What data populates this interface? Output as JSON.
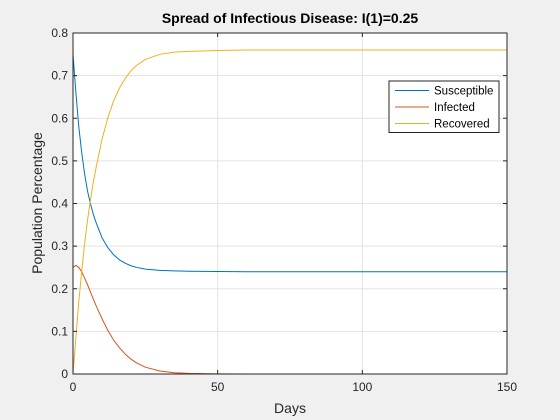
{
  "chart_data": {
    "type": "line",
    "title": "Spread of Infectious Disease: I(1)=0.25",
    "xlabel": "Days",
    "ylabel": "Population Percentage",
    "xlim": [
      0,
      150
    ],
    "ylim": [
      0,
      0.8
    ],
    "xticks": [
      0,
      50,
      100,
      150
    ],
    "yticks": [
      0,
      0.1,
      0.2,
      0.3,
      0.4,
      0.5,
      0.6,
      0.7,
      0.8
    ],
    "grid": true,
    "legend_position": "top-right",
    "series": [
      {
        "name": "Susceptible",
        "color": "#0072bd",
        "x": [
          0,
          1,
          2,
          3,
          4,
          5,
          6,
          7,
          8,
          10,
          12,
          14,
          16,
          18,
          20,
          22,
          25,
          30,
          35,
          40,
          50,
          60,
          80,
          100,
          120,
          150
        ],
        "y": [
          0.75,
          0.66,
          0.58,
          0.52,
          0.47,
          0.43,
          0.4,
          0.375,
          0.355,
          0.32,
          0.297,
          0.28,
          0.268,
          0.26,
          0.254,
          0.25,
          0.246,
          0.243,
          0.242,
          0.241,
          0.2405,
          0.24,
          0.24,
          0.24,
          0.24,
          0.24
        ]
      },
      {
        "name": "Infected",
        "color": "#d95319",
        "x": [
          0,
          1,
          2,
          3,
          4,
          5,
          6,
          7,
          8,
          10,
          12,
          14,
          16,
          18,
          20,
          22,
          25,
          30,
          35,
          40,
          50,
          60,
          80,
          100,
          120,
          150
        ],
        "y": [
          0.25,
          0.255,
          0.25,
          0.24,
          0.225,
          0.21,
          0.193,
          0.176,
          0.16,
          0.13,
          0.103,
          0.08,
          0.062,
          0.047,
          0.035,
          0.026,
          0.016,
          0.007,
          0.003,
          0.0015,
          0.0003,
          0.0001,
          0,
          0,
          0,
          0
        ]
      },
      {
        "name": "Recovered",
        "color": "#edb120",
        "x": [
          0,
          1,
          2,
          3,
          4,
          5,
          6,
          7,
          8,
          10,
          12,
          14,
          16,
          18,
          20,
          22,
          25,
          30,
          35,
          40,
          50,
          60,
          80,
          100,
          120,
          150
        ],
        "y": [
          0.0,
          0.085,
          0.17,
          0.24,
          0.305,
          0.36,
          0.407,
          0.449,
          0.485,
          0.55,
          0.6,
          0.64,
          0.67,
          0.693,
          0.711,
          0.724,
          0.738,
          0.75,
          0.755,
          0.757,
          0.759,
          0.76,
          0.76,
          0.76,
          0.76,
          0.76
        ]
      }
    ]
  }
}
